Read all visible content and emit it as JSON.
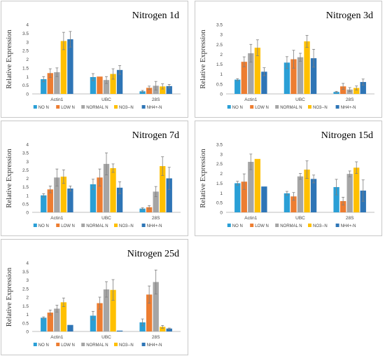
{
  "colors": {
    "NO N": "#2a9fd6",
    "LOW N": "#ed7d31",
    "NORMAL N": "#a5a5a5",
    "NO3--N": "#ffc000",
    "NH4+-N": "#2e75b6"
  },
  "chart_data": [
    {
      "type": "bar",
      "title": "Nitrogen 1d",
      "ylabel": "Relative Expression",
      "ylim": [
        0,
        4
      ],
      "yticks": [
        "0",
        "0.5",
        "1",
        "1.5",
        "2",
        "2.5",
        "3",
        "3.5",
        "4"
      ],
      "categories": [
        "Actin1",
        "UBC",
        "28S"
      ],
      "series": [
        {
          "name": "NO N",
          "values": [
            0.85,
            0.97,
            0.15
          ],
          "errors": [
            0.15,
            0.2,
            0.05
          ]
        },
        {
          "name": "LOW N",
          "values": [
            1.2,
            1.0,
            0.35
          ],
          "errors": [
            0.25,
            0.0,
            0.1
          ]
        },
        {
          "name": "NORMAL N",
          "values": [
            1.25,
            0.8,
            0.47
          ],
          "errors": [
            0.25,
            0.2,
            0.25
          ]
        },
        {
          "name": "NO3--N",
          "values": [
            3.05,
            1.15,
            0.43
          ],
          "errors": [
            0.5,
            0.3,
            0.15
          ]
        },
        {
          "name": "NH4+-N",
          "values": [
            3.15,
            1.38,
            0.45
          ],
          "errors": [
            0.45,
            0.25,
            0.1
          ]
        }
      ]
    },
    {
      "type": "bar",
      "title": "Nitrogen 3d",
      "ylabel": "Relative Expression",
      "ylim": [
        0,
        3.5
      ],
      "yticks": [
        "0",
        "0.5",
        "1",
        "1.5",
        "2",
        "2.5",
        "3",
        "3.5"
      ],
      "categories": [
        "Actin1",
        "UBC",
        "28S"
      ],
      "series": [
        {
          "name": "NO N",
          "values": [
            0.72,
            1.58,
            0.1
          ],
          "errors": [
            0.05,
            0.3,
            0.03
          ]
        },
        {
          "name": "LOW N",
          "values": [
            1.62,
            1.75,
            0.38
          ],
          "errors": [
            0.25,
            0.45,
            0.15
          ]
        },
        {
          "name": "NORMAL N",
          "values": [
            2.05,
            1.85,
            0.22
          ],
          "errors": [
            0.45,
            0.2,
            0.1
          ]
        },
        {
          "name": "NO3--N",
          "values": [
            2.33,
            2.65,
            0.3
          ],
          "errors": [
            0.4,
            0.3,
            0.1
          ]
        },
        {
          "name": "NH4+-N",
          "values": [
            1.12,
            1.8,
            0.6
          ],
          "errors": [
            0.2,
            0.45,
            0.15
          ]
        }
      ]
    },
    {
      "type": "bar",
      "title": "Nitrogen 7d",
      "ylabel": "Relative Expression",
      "ylim": [
        0,
        4
      ],
      "yticks": [
        "0",
        "0.5",
        "1",
        "1.5",
        "2",
        "2.5",
        "3",
        "3.5",
        "4"
      ],
      "categories": [
        "Actin1",
        "UBC",
        "28S"
      ],
      "series": [
        {
          "name": "NO N",
          "values": [
            1.0,
            1.65,
            0.22
          ],
          "errors": [
            0.1,
            0.3,
            0.05
          ]
        },
        {
          "name": "LOW N",
          "values": [
            1.35,
            2.05,
            0.3
          ],
          "errors": [
            0.2,
            0.5,
            0.1
          ]
        },
        {
          "name": "NORMAL N",
          "values": [
            2.05,
            2.85,
            1.22
          ],
          "errors": [
            0.5,
            0.65,
            0.3
          ]
        },
        {
          "name": "NO3--N",
          "values": [
            2.1,
            2.6,
            2.72
          ],
          "errors": [
            0.4,
            0.25,
            0.55
          ]
        },
        {
          "name": "NH4+-N",
          "values": [
            1.4,
            1.45,
            2.0
          ],
          "errors": [
            0.15,
            0.35,
            0.65
          ]
        }
      ]
    },
    {
      "type": "bar",
      "title": "Nitrogen 15d",
      "ylabel": "Relative Expression",
      "ylim": [
        0,
        3.5
      ],
      "yticks": [
        "0",
        "0.5",
        "1",
        "1.5",
        "2",
        "2.5",
        "3",
        "3.5"
      ],
      "categories": [
        "Actin1",
        "UBC",
        "28S"
      ],
      "series": [
        {
          "name": "NO N",
          "values": [
            1.5,
            0.98,
            1.3
          ],
          "errors": [
            0.1,
            0.1,
            0.4
          ]
        },
        {
          "name": "LOW N",
          "values": [
            1.58,
            0.82,
            0.58
          ],
          "errors": [
            0.4,
            0.2,
            0.2
          ]
        },
        {
          "name": "NORMAL N",
          "values": [
            2.6,
            1.85,
            1.98
          ],
          "errors": [
            0.4,
            0.15,
            0.15
          ]
        },
        {
          "name": "NO3--N",
          "values": [
            2.75,
            2.2,
            2.3
          ],
          "errors": [
            0.0,
            0.45,
            0.3
          ]
        },
        {
          "name": "NH4+-N",
          "values": [
            1.33,
            1.72,
            1.12
          ],
          "errors": [
            0.0,
            0.2,
            0.55
          ]
        }
      ]
    },
    {
      "type": "bar",
      "title": "Nitrogen 25d",
      "ylabel": "Relative Expression",
      "ylim": [
        0,
        4
      ],
      "yticks": [
        "0",
        "0.5",
        "1",
        "1.5",
        "2",
        "2.5",
        "3",
        "3.5",
        "4"
      ],
      "categories": [
        "Actin1",
        "UBC",
        "28S"
      ],
      "series": [
        {
          "name": "NO N",
          "values": [
            0.8,
            0.92,
            0.53
          ],
          "errors": [
            0.05,
            0.25,
            0.2
          ]
        },
        {
          "name": "LOW N",
          "values": [
            1.1,
            1.65,
            2.15
          ],
          "errors": [
            0.15,
            0.35,
            0.5
          ]
        },
        {
          "name": "NORMAL N",
          "values": [
            1.33,
            2.45,
            2.88
          ],
          "errors": [
            0.2,
            0.45,
            0.7
          ]
        },
        {
          "name": "NO3--N",
          "values": [
            1.7,
            2.42,
            0.27
          ],
          "errors": [
            0.25,
            0.6,
            0.08
          ]
        },
        {
          "name": "NH4+-N",
          "values": [
            0.38,
            0.05,
            0.17
          ],
          "errors": [
            0.0,
            0.0,
            0.03
          ]
        }
      ]
    }
  ]
}
